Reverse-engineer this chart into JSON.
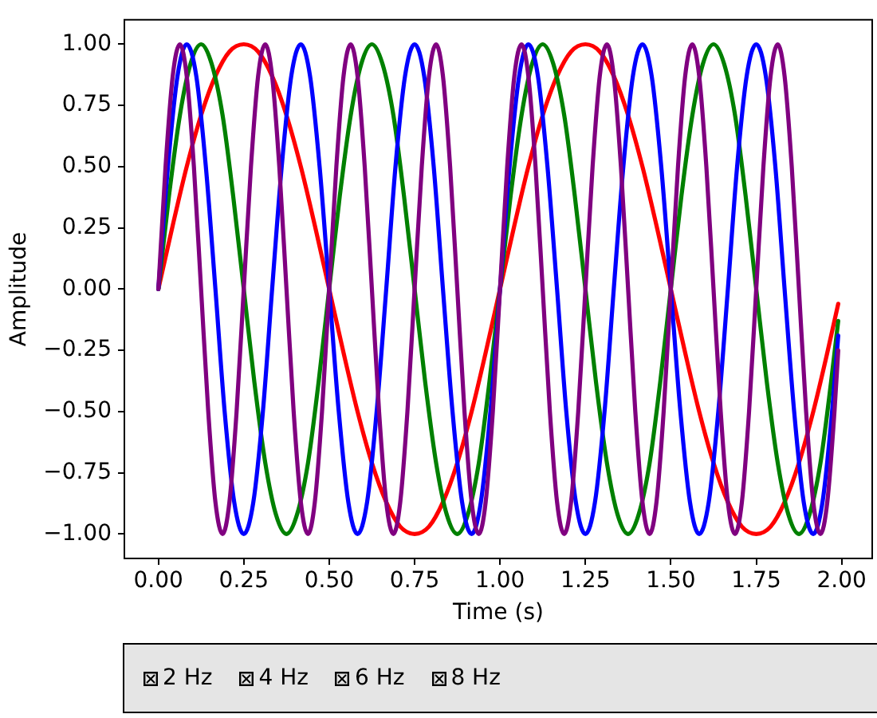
{
  "chart_data": {
    "type": "line",
    "xlabel": "Time (s)",
    "ylabel": "Amplitude",
    "xlim": [
      -0.0995,
      2.0895
    ],
    "ylim": [
      -1.1,
      1.1
    ],
    "xticks": [
      {
        "value": 0,
        "label": "0.00"
      },
      {
        "value": 0.25,
        "label": "0.25"
      },
      {
        "value": 0.5,
        "label": "0.50"
      },
      {
        "value": 0.75,
        "label": "0.75"
      },
      {
        "value": 1,
        "label": "1.00"
      },
      {
        "value": 1.25,
        "label": "1.25"
      },
      {
        "value": 1.5,
        "label": "1.50"
      },
      {
        "value": 1.75,
        "label": "1.75"
      },
      {
        "value": 2,
        "label": "2.00"
      }
    ],
    "yticks": [
      {
        "value": -1,
        "label": "−1.00"
      },
      {
        "value": -0.75,
        "label": "−0.75"
      },
      {
        "value": -0.5,
        "label": "−0.50"
      },
      {
        "value": -0.25,
        "label": "−0.25"
      },
      {
        "value": 0,
        "label": "0.00"
      },
      {
        "value": 0.25,
        "label": "0.25"
      },
      {
        "value": 0.5,
        "label": "0.50"
      },
      {
        "value": 0.75,
        "label": "0.75"
      },
      {
        "value": 1,
        "label": "1.00"
      }
    ],
    "annotations": [
      "2 Hz",
      "4 Hz",
      "6 Hz",
      "8 Hz"
    ],
    "series": [
      {
        "color": "#ff0000",
        "x": [
          0,
          0.042,
          0.083,
          0.125,
          0.167,
          0.208,
          0.25,
          0.292,
          0.333,
          0.375,
          0.417,
          0.458,
          0.5,
          0.542,
          0.583,
          0.625,
          0.667,
          0.708,
          0.75,
          0.792,
          0.833,
          0.875,
          0.917,
          0.958,
          1,
          1.042,
          1.083,
          1.125,
          1.167,
          1.208,
          1.25,
          1.292,
          1.333,
          1.375,
          1.417,
          1.458,
          1.5,
          1.542,
          1.583,
          1.625,
          1.667,
          1.708,
          1.75,
          1.792,
          1.833,
          1.875,
          1.917,
          1.958,
          1.99
        ],
        "values": [
          0,
          0.26,
          0.5,
          0.71,
          0.87,
          0.97,
          1,
          0.97,
          0.87,
          0.71,
          0.5,
          0.26,
          0,
          -0.26,
          -0.5,
          -0.71,
          -0.87,
          -0.97,
          -1,
          -0.97,
          -0.87,
          -0.71,
          -0.5,
          -0.26,
          0,
          0.26,
          0.5,
          0.71,
          0.87,
          0.97,
          1,
          0.97,
          0.87,
          0.71,
          0.5,
          0.26,
          0,
          -0.26,
          -0.5,
          -0.71,
          -0.87,
          -0.97,
          -1,
          -0.97,
          -0.87,
          -0.71,
          -0.5,
          -0.26,
          -0.06
        ]
      },
      {
        "color": "#008000",
        "x": [
          0,
          0.031,
          0.063,
          0.094,
          0.125,
          0.156,
          0.188,
          0.219,
          0.25,
          0.281,
          0.313,
          0.344,
          0.375,
          0.406,
          0.438,
          0.469,
          0.5,
          0.531,
          0.563,
          0.594,
          0.625,
          0.656,
          0.688,
          0.719,
          0.75,
          0.781,
          0.813,
          0.844,
          0.875,
          0.906,
          0.938,
          0.969,
          1,
          1.031,
          1.063,
          1.094,
          1.125,
          1.156,
          1.188,
          1.219,
          1.25,
          1.281,
          1.313,
          1.344,
          1.375,
          1.406,
          1.438,
          1.469,
          1.5,
          1.531,
          1.563,
          1.594,
          1.625,
          1.656,
          1.688,
          1.719,
          1.75,
          1.781,
          1.813,
          1.844,
          1.875,
          1.906,
          1.938,
          1.969,
          1.99
        ],
        "values": [
          0,
          0.38,
          0.71,
          0.92,
          1,
          0.92,
          0.71,
          0.38,
          0,
          -0.38,
          -0.71,
          -0.92,
          -1,
          -0.92,
          -0.71,
          -0.38,
          0,
          0.38,
          0.71,
          0.92,
          1,
          0.92,
          0.71,
          0.38,
          0,
          -0.38,
          -0.71,
          -0.92,
          -1,
          -0.92,
          -0.71,
          -0.38,
          0,
          0.38,
          0.71,
          0.92,
          1,
          0.92,
          0.71,
          0.38,
          0,
          -0.38,
          -0.71,
          -0.92,
          -1,
          -0.92,
          -0.71,
          -0.38,
          0,
          0.38,
          0.71,
          0.92,
          1,
          0.92,
          0.71,
          0.38,
          0,
          -0.38,
          -0.71,
          -0.92,
          -1,
          -0.92,
          -0.71,
          -0.38,
          -0.13
        ]
      },
      {
        "color": "#0000ff",
        "x": [
          0,
          0.028,
          0.056,
          0.083,
          0.111,
          0.139,
          0.167,
          0.194,
          0.222,
          0.25,
          0.278,
          0.306,
          0.333,
          0.361,
          0.389,
          0.417,
          0.444,
          0.472,
          0.5,
          0.528,
          0.556,
          0.583,
          0.611,
          0.639,
          0.667,
          0.694,
          0.722,
          0.75,
          0.778,
          0.806,
          0.833,
          0.861,
          0.889,
          0.917,
          0.944,
          0.972,
          1,
          1.028,
          1.056,
          1.083,
          1.111,
          1.139,
          1.167,
          1.194,
          1.222,
          1.25,
          1.278,
          1.306,
          1.333,
          1.361,
          1.389,
          1.417,
          1.444,
          1.472,
          1.5,
          1.528,
          1.556,
          1.583,
          1.611,
          1.639,
          1.667,
          1.694,
          1.722,
          1.75,
          1.778,
          1.806,
          1.833,
          1.861,
          1.889,
          1.917,
          1.944,
          1.972,
          1.99
        ],
        "values": [
          0,
          0.5,
          0.87,
          1,
          0.87,
          0.5,
          0,
          -0.5,
          -0.87,
          -1,
          -0.87,
          -0.5,
          0,
          0.5,
          0.87,
          1,
          0.87,
          0.5,
          0,
          -0.5,
          -0.87,
          -1,
          -0.87,
          -0.5,
          0,
          0.5,
          0.87,
          1,
          0.87,
          0.5,
          0,
          -0.5,
          -0.87,
          -1,
          -0.87,
          -0.5,
          0,
          0.5,
          0.87,
          1,
          0.87,
          0.5,
          0,
          -0.5,
          -0.87,
          -1,
          -0.87,
          -0.5,
          0,
          0.5,
          0.87,
          1,
          0.87,
          0.5,
          0,
          -0.5,
          -0.87,
          -1,
          -0.87,
          -0.5,
          0,
          0.5,
          0.87,
          1,
          0.87,
          0.5,
          0,
          -0.5,
          -0.87,
          -1,
          -0.87,
          -0.5,
          -0.19
        ]
      },
      {
        "color": "#800080",
        "x": [
          0,
          0.021,
          0.042,
          0.063,
          0.083,
          0.104,
          0.125,
          0.146,
          0.167,
          0.188,
          0.208,
          0.229,
          0.25,
          0.271,
          0.292,
          0.313,
          0.333,
          0.354,
          0.375,
          0.396,
          0.417,
          0.438,
          0.458,
          0.479,
          0.5,
          0.521,
          0.542,
          0.563,
          0.583,
          0.604,
          0.625,
          0.646,
          0.667,
          0.688,
          0.708,
          0.729,
          0.75,
          0.771,
          0.792,
          0.813,
          0.833,
          0.854,
          0.875,
          0.896,
          0.917,
          0.938,
          0.958,
          0.979,
          1,
          1.021,
          1.042,
          1.063,
          1.083,
          1.104,
          1.125,
          1.146,
          1.167,
          1.188,
          1.208,
          1.229,
          1.25,
          1.271,
          1.292,
          1.313,
          1.333,
          1.354,
          1.375,
          1.396,
          1.417,
          1.438,
          1.458,
          1.479,
          1.5,
          1.521,
          1.542,
          1.563,
          1.583,
          1.604,
          1.625,
          1.646,
          1.667,
          1.688,
          1.708,
          1.729,
          1.75,
          1.771,
          1.792,
          1.813,
          1.833,
          1.854,
          1.875,
          1.896,
          1.917,
          1.938,
          1.958,
          1.979,
          1.99
        ],
        "values": [
          0,
          0.5,
          0.87,
          1,
          0.87,
          0.5,
          0,
          -0.5,
          -0.87,
          -1,
          -0.87,
          -0.5,
          0,
          0.5,
          0.87,
          1,
          0.87,
          0.5,
          0,
          -0.5,
          -0.87,
          -1,
          -0.87,
          -0.5,
          0,
          0.5,
          0.87,
          1,
          0.87,
          0.5,
          0,
          -0.5,
          -0.87,
          -1,
          -0.87,
          -0.5,
          0,
          0.5,
          0.87,
          1,
          0.87,
          0.5,
          0,
          -0.5,
          -0.87,
          -1,
          -0.87,
          -0.5,
          0,
          0.5,
          0.87,
          1,
          0.87,
          0.5,
          0,
          -0.5,
          -0.87,
          -1,
          -0.87,
          -0.5,
          0,
          0.5,
          0.87,
          1,
          0.87,
          0.5,
          0,
          -0.5,
          -0.87,
          -1,
          -0.87,
          -0.5,
          0,
          0.5,
          0.87,
          1,
          0.87,
          0.5,
          0,
          -0.5,
          -0.87,
          -1,
          -0.87,
          -0.5,
          0,
          0.5,
          0.87,
          1,
          0.87,
          0.5,
          0,
          -0.5,
          -0.87,
          -1,
          -0.87,
          -0.5,
          -0.25
        ]
      }
    ]
  }
}
